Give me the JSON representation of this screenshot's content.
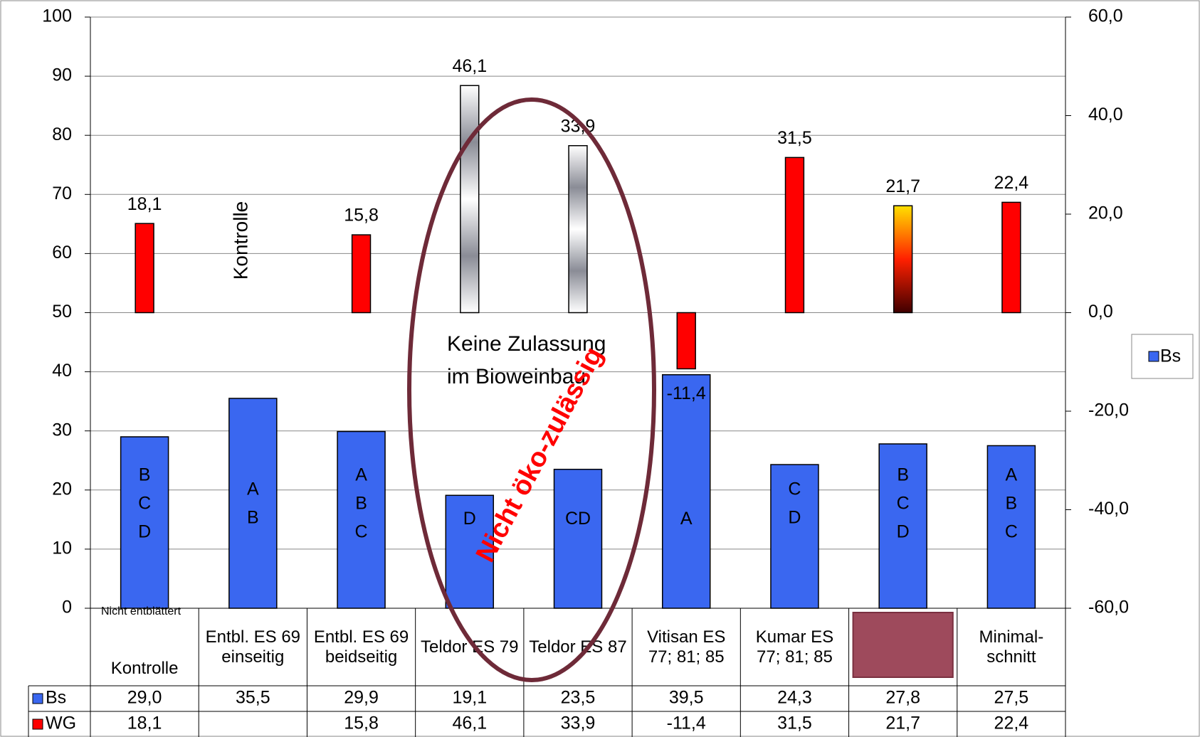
{
  "chart_data": {
    "type": "bar",
    "categories": [
      "Kontrolle",
      "Entbl. ES 69 einseitig",
      "Entbl. ES 69 beidseitig",
      "Teldor ES 79",
      "Teldor ES 87",
      "Vitisan ES 77; 81; 85",
      "Kumar ES 77; 81; 85",
      null,
      "Minimal-schnitt"
    ],
    "series": [
      {
        "name": "Bs",
        "color": "#3a67f0",
        "values": [
          29.0,
          35.5,
          29.9,
          19.1,
          23.5,
          39.5,
          24.3,
          27.8,
          27.5
        ],
        "value_labels": [
          "29,0",
          "35,5",
          "29,9",
          "19,1",
          "23,5",
          "39,5",
          "24,3",
          "27,8",
          "27,5"
        ],
        "letters": [
          [
            "B",
            "C",
            "D"
          ],
          [
            "A",
            "B"
          ],
          [
            "A",
            "B",
            "C"
          ],
          [
            "D"
          ],
          [
            "CD"
          ],
          [
            "A"
          ],
          [
            "C",
            "D"
          ],
          [
            "B",
            "C",
            "D"
          ],
          [
            "A",
            "B",
            "C"
          ]
        ]
      },
      {
        "name": "WG",
        "color": "#ff0000",
        "axis": "y2",
        "values": [
          18.1,
          null,
          15.8,
          46.1,
          33.9,
          -11.4,
          31.5,
          21.7,
          22.4
        ],
        "value_labels": [
          "18,1",
          null,
          "15,8",
          "46,1",
          "33,9",
          "-11,4",
          "31,5",
          "21,7",
          "22,4"
        ],
        "colors": [
          "#ff0000",
          null,
          "#ff0000",
          [
            "#ffffff",
            "#8a8c96"
          ],
          [
            "#ffffff",
            "#8a8c96"
          ],
          "#ff0000",
          "#ff0000",
          [
            "#ffe000",
            "#ff2000",
            "#400000"
          ],
          "#ff0000"
        ]
      }
    ],
    "ylim": [
      0,
      100
    ],
    "yticks": [
      0,
      10,
      20,
      30,
      40,
      50,
      60,
      70,
      80,
      90,
      100
    ],
    "y2lim": [
      -60,
      60
    ],
    "y2ticks": [
      {
        "value": -60,
        "label": "-60,0"
      },
      {
        "value": -40,
        "label": "-40,0"
      },
      {
        "value": -20,
        "label": "-20,0"
      },
      {
        "value": 0,
        "label": "0,0"
      },
      {
        "value": 20,
        "label": "20,0"
      },
      {
        "value": 40,
        "label": "40,0"
      },
      {
        "value": 60,
        "label": "60,0"
      }
    ],
    "grid": true,
    "legend": "right",
    "annotations": [
      "Nicht entblättert",
      "Kontrolle",
      "Keine Zulassung im Bioweinbau",
      "Nicht öko-zulässig"
    ]
  }
}
